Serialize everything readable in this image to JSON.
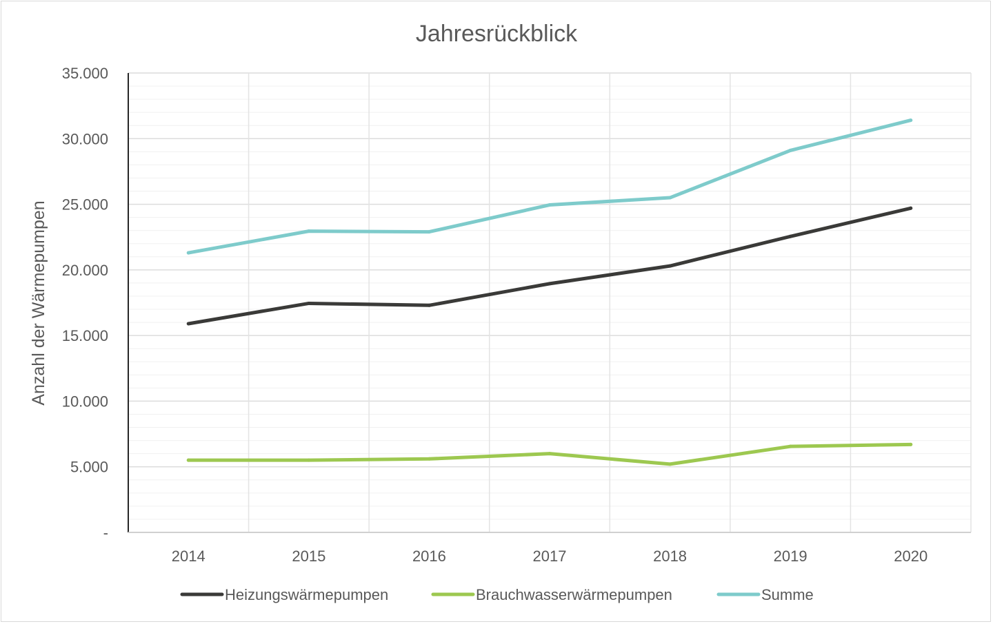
{
  "chart_data": {
    "type": "line",
    "title": "Jahresrückblick",
    "xlabel": "",
    "ylabel": "Anzahl der Wärmepumpen",
    "categories": [
      "2014",
      "2015",
      "2016",
      "2017",
      "2018",
      "2019",
      "2020"
    ],
    "ylim": [
      0,
      35000
    ],
    "yticks": [
      0,
      5000,
      10000,
      15000,
      20000,
      25000,
      30000,
      35000
    ],
    "ytick_labels": [
      "-",
      "5.000",
      "10.000",
      "15.000",
      "20.000",
      "25.000",
      "30.000",
      "35.000"
    ],
    "minor_gridlines": true,
    "legend_position": "bottom",
    "series": [
      {
        "name": "Heizungswärmepumpen",
        "color": "#3a3a38",
        "values": [
          15900,
          17450,
          17300,
          18950,
          20300,
          22550,
          24700
        ]
      },
      {
        "name": "Brauchwasserwärmepumpen",
        "color": "#9dc850",
        "values": [
          5500,
          5500,
          5600,
          6000,
          5200,
          6550,
          6700
        ]
      },
      {
        "name": "Summe",
        "color": "#7ecbcb",
        "values": [
          21300,
          22950,
          22900,
          24950,
          25500,
          29100,
          31400
        ]
      }
    ]
  }
}
